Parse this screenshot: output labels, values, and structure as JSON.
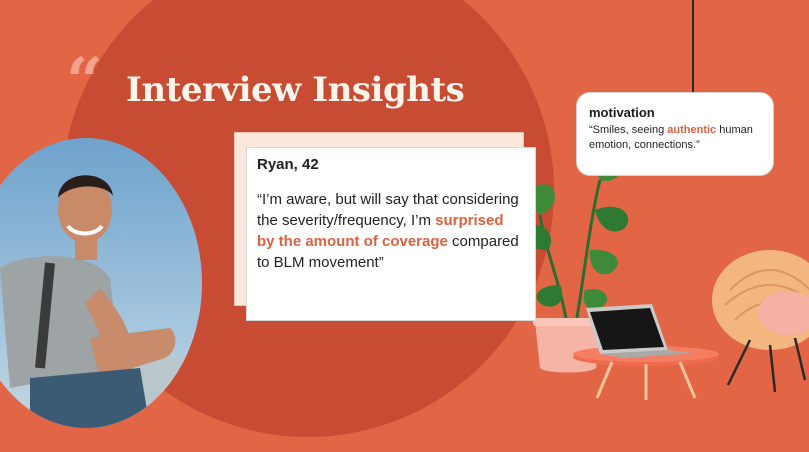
{
  "slide": {
    "title": "Interview Insights",
    "quote_mark": "“"
  },
  "card": {
    "name": "Ryan, 42",
    "quote_parts": {
      "before": "“I’m aware, but will say that considering the severity/frequency, I’m ",
      "highlight": "surprised by the amount of coverage",
      "after": " compared to BLM movement”"
    }
  },
  "note": {
    "title": "motivation",
    "body_parts": {
      "before": "“Smiles, seeing ",
      "highlight": "authentic",
      "after": " human emotion, connections.”"
    }
  },
  "colors": {
    "background": "#e26646",
    "circle": "#c84c34",
    "accent": "#e0603e",
    "title": "#fff4ea"
  },
  "icons": [
    "quote-icon",
    "plant-illustration",
    "laptop-illustration",
    "chair-illustration",
    "pendant-lamp-illustration"
  ]
}
